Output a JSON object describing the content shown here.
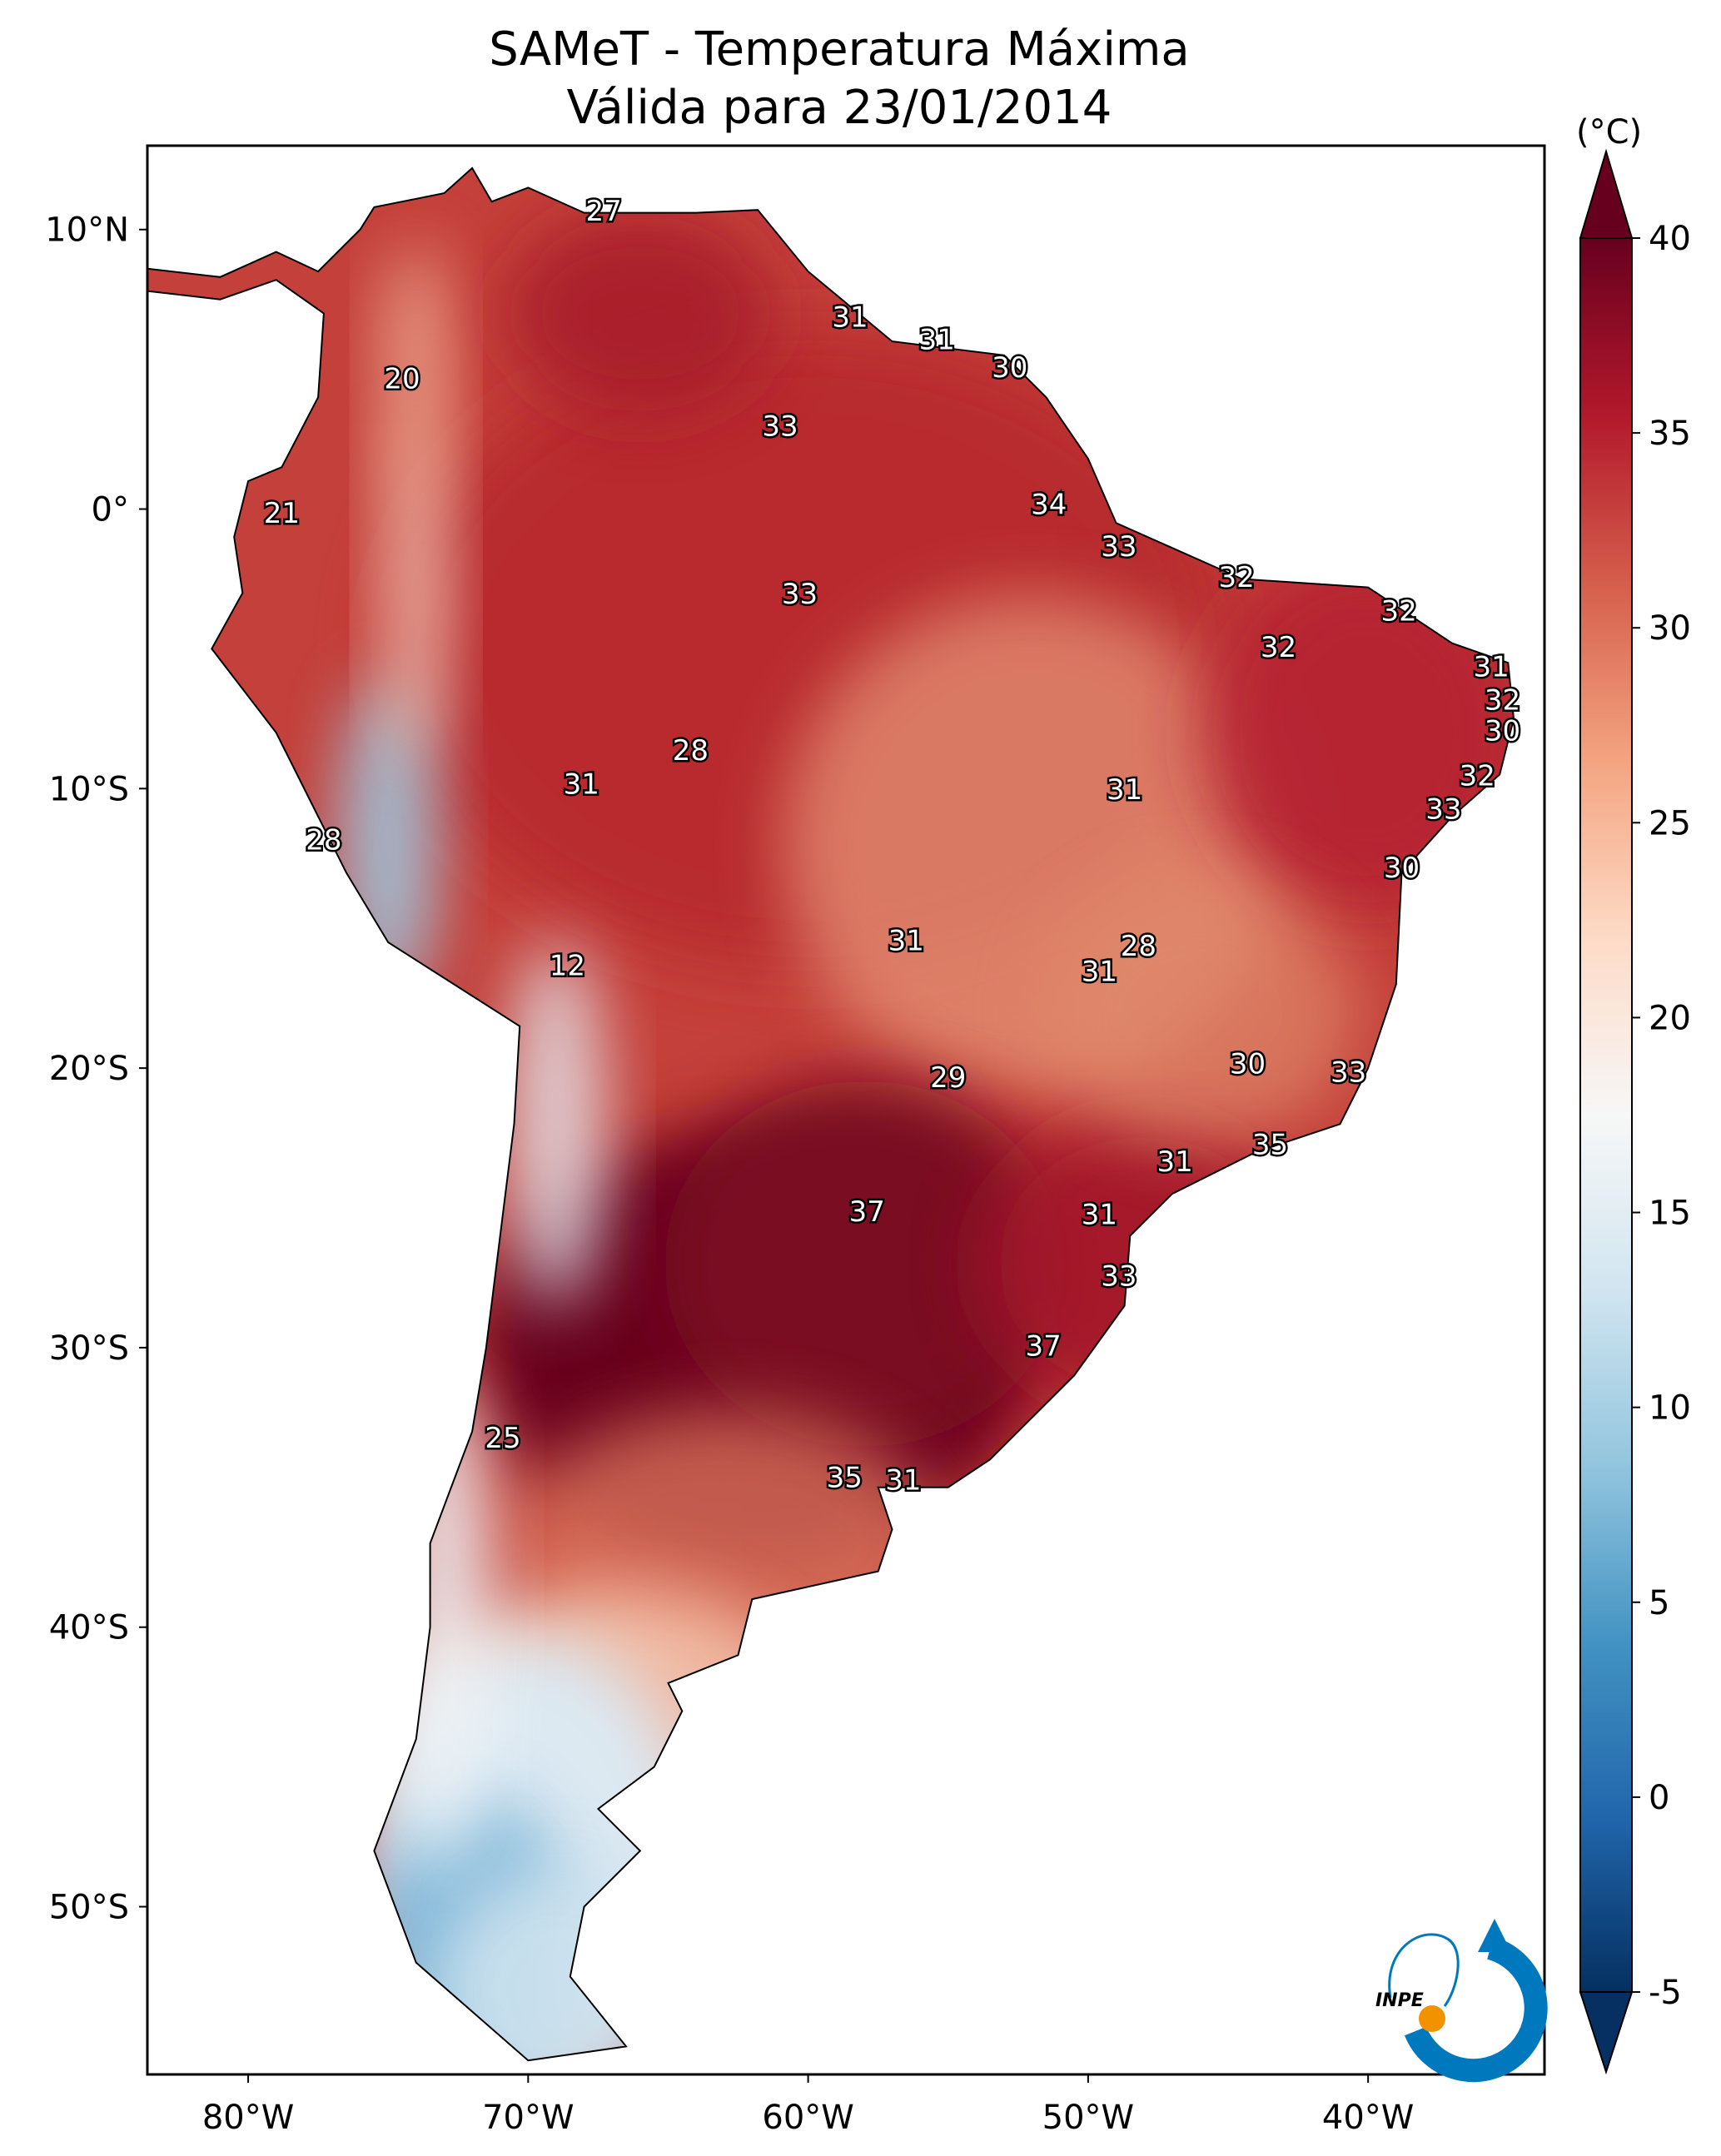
{
  "chart_data": {
    "type": "heatmap",
    "title": "SAMeT - Temperatura Máxima",
    "subtitle": "Válida para 23/01/2014",
    "xlim": [
      -83.6,
      -33.7
    ],
    "ylim": [
      -56,
      13
    ],
    "x_ticks": [
      {
        "value": -80,
        "label": "80°W"
      },
      {
        "value": -70,
        "label": "70°W"
      },
      {
        "value": -60,
        "label": "60°W"
      },
      {
        "value": -50,
        "label": "50°W"
      },
      {
        "value": -40,
        "label": "40°W"
      }
    ],
    "y_ticks": [
      {
        "value": 10,
        "label": "10°N"
      },
      {
        "value": 0,
        "label": "0°"
      },
      {
        "value": -10,
        "label": "10°S"
      },
      {
        "value": -20,
        "label": "20°S"
      },
      {
        "value": -30,
        "label": "30°S"
      },
      {
        "value": -40,
        "label": "40°S"
      },
      {
        "value": -50,
        "label": "50°S"
      }
    ],
    "colorbar": {
      "label": "(°C)",
      "colormap": "RdBu_r",
      "range": [
        -5,
        40
      ],
      "extend": "both",
      "ticks": [
        "40",
        "35",
        "30",
        "25",
        "20",
        "15",
        "10",
        "5",
        "0",
        "-5"
      ],
      "colors": [
        "#053061",
        "#2166ac",
        "#4393c3",
        "#92c5de",
        "#d1e5f0",
        "#f7f7f7",
        "#fddbc7",
        "#f4a582",
        "#d6604d",
        "#b2182b",
        "#67001f"
      ]
    },
    "station_labels": [
      {
        "lon": -67.3,
        "lat": 10.6,
        "value": "27"
      },
      {
        "lon": -58.5,
        "lat": 6.8,
        "value": "31"
      },
      {
        "lon": -55.4,
        "lat": 6.0,
        "value": "31"
      },
      {
        "lon": -52.8,
        "lat": 5.0,
        "value": "30"
      },
      {
        "lon": -74.5,
        "lat": 4.6,
        "value": "20"
      },
      {
        "lon": -61.0,
        "lat": 2.9,
        "value": "33"
      },
      {
        "lon": -78.8,
        "lat": -0.2,
        "value": "21"
      },
      {
        "lon": -51.4,
        "lat": 0.1,
        "value": "34"
      },
      {
        "lon": -48.9,
        "lat": -1.4,
        "value": "33"
      },
      {
        "lon": -60.3,
        "lat": -3.1,
        "value": "33"
      },
      {
        "lon": -44.7,
        "lat": -2.5,
        "value": "32"
      },
      {
        "lon": -38.9,
        "lat": -3.7,
        "value": "32"
      },
      {
        "lon": -43.2,
        "lat": -5.0,
        "value": "32"
      },
      {
        "lon": -35.6,
        "lat": -5.7,
        "value": "31"
      },
      {
        "lon": -35.2,
        "lat": -6.9,
        "value": "32"
      },
      {
        "lon": -35.2,
        "lat": -8.0,
        "value": "30"
      },
      {
        "lon": -64.2,
        "lat": -8.7,
        "value": "28"
      },
      {
        "lon": -68.1,
        "lat": -9.9,
        "value": "31"
      },
      {
        "lon": -48.7,
        "lat": -10.1,
        "value": "31"
      },
      {
        "lon": -36.1,
        "lat": -9.6,
        "value": "32"
      },
      {
        "lon": -37.3,
        "lat": -10.8,
        "value": "33"
      },
      {
        "lon": -77.3,
        "lat": -11.9,
        "value": "28"
      },
      {
        "lon": -38.8,
        "lat": -12.9,
        "value": "30"
      },
      {
        "lon": -56.5,
        "lat": -15.5,
        "value": "31"
      },
      {
        "lon": -48.2,
        "lat": -15.7,
        "value": "28"
      },
      {
        "lon": -49.6,
        "lat": -16.6,
        "value": "31"
      },
      {
        "lon": -68.6,
        "lat": -16.4,
        "value": "12"
      },
      {
        "lon": -44.3,
        "lat": -19.9,
        "value": "30"
      },
      {
        "lon": -40.7,
        "lat": -20.2,
        "value": "33"
      },
      {
        "lon": -55.0,
        "lat": -20.4,
        "value": "29"
      },
      {
        "lon": -43.5,
        "lat": -22.8,
        "value": "35"
      },
      {
        "lon": -46.9,
        "lat": -23.4,
        "value": "31"
      },
      {
        "lon": -57.9,
        "lat": -25.2,
        "value": "37"
      },
      {
        "lon": -49.6,
        "lat": -25.3,
        "value": "31"
      },
      {
        "lon": -48.9,
        "lat": -27.5,
        "value": "33"
      },
      {
        "lon": -51.6,
        "lat": -30.0,
        "value": "37"
      },
      {
        "lon": -70.9,
        "lat": -33.3,
        "value": "25"
      },
      {
        "lon": -58.7,
        "lat": -34.7,
        "value": "35"
      },
      {
        "lon": -56.6,
        "lat": -34.8,
        "value": "31"
      }
    ]
  },
  "logo": {
    "text": "INPE",
    "colors": {
      "blue": "#0078bd",
      "orange": "#f39200"
    }
  }
}
